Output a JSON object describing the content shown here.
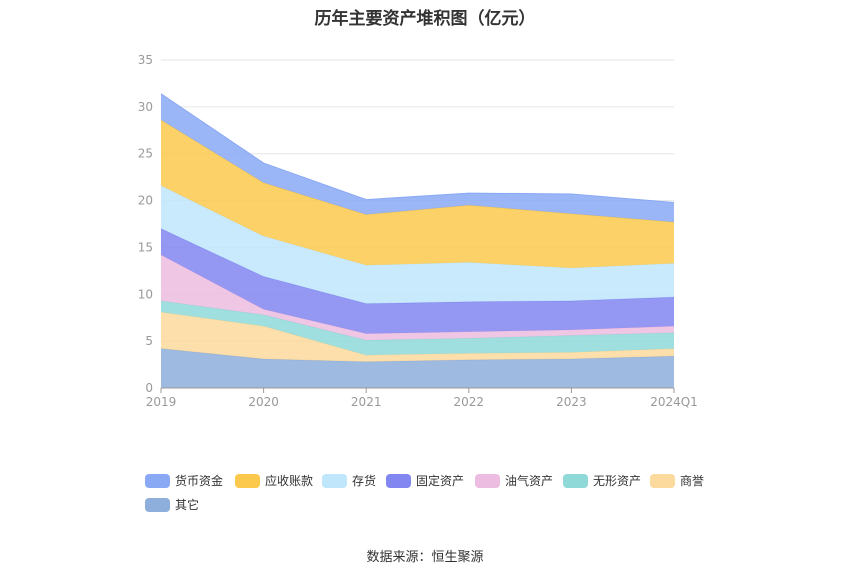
{
  "chart_data": {
    "type": "area",
    "stacked": true,
    "title": "历年主要资产堆积图（亿元）",
    "categories": [
      "2019",
      "2020",
      "2021",
      "2022",
      "2023",
      "2024Q1"
    ],
    "ylim": [
      0,
      35
    ],
    "yticks": [
      0,
      5,
      10,
      15,
      20,
      25,
      30,
      35
    ],
    "grid": true,
    "legend_position": "bottom",
    "series": [
      {
        "name": "其它",
        "color": "#8eaedb",
        "values": [
          4.2,
          3.1,
          2.8,
          3.0,
          3.1,
          3.4
        ]
      },
      {
        "name": "商誉",
        "color": "#fcd99c",
        "values": [
          3.9,
          3.5,
          0.7,
          0.7,
          0.7,
          0.8
        ]
      },
      {
        "name": "无形资产",
        "color": "#8fd9d9",
        "values": [
          1.2,
          1.2,
          1.6,
          1.6,
          1.8,
          1.7
        ]
      },
      {
        "name": "油气资产",
        "color": "#ecbde0",
        "values": [
          4.9,
          0.6,
          0.7,
          0.7,
          0.6,
          0.7
        ]
      },
      {
        "name": "固定资产",
        "color": "#8286f0",
        "values": [
          2.8,
          3.5,
          3.2,
          3.2,
          3.1,
          3.1
        ]
      },
      {
        "name": "存货",
        "color": "#bfe6fb",
        "values": [
          4.6,
          4.3,
          4.1,
          4.2,
          3.5,
          3.6
        ]
      },
      {
        "name": "应收账款",
        "color": "#fcc94c",
        "values": [
          7.0,
          5.7,
          5.4,
          6.1,
          5.8,
          4.4
        ]
      },
      {
        "name": "货币资金",
        "color": "#8aa9f5",
        "values": [
          2.8,
          2.1,
          1.6,
          1.3,
          2.1,
          2.1
        ]
      }
    ],
    "legend_order": [
      "货币资金",
      "应收账款",
      "存货",
      "固定资产",
      "油气资产",
      "无形资产",
      "商誉",
      "其它"
    ],
    "source": "数据来源：恒生聚源"
  }
}
